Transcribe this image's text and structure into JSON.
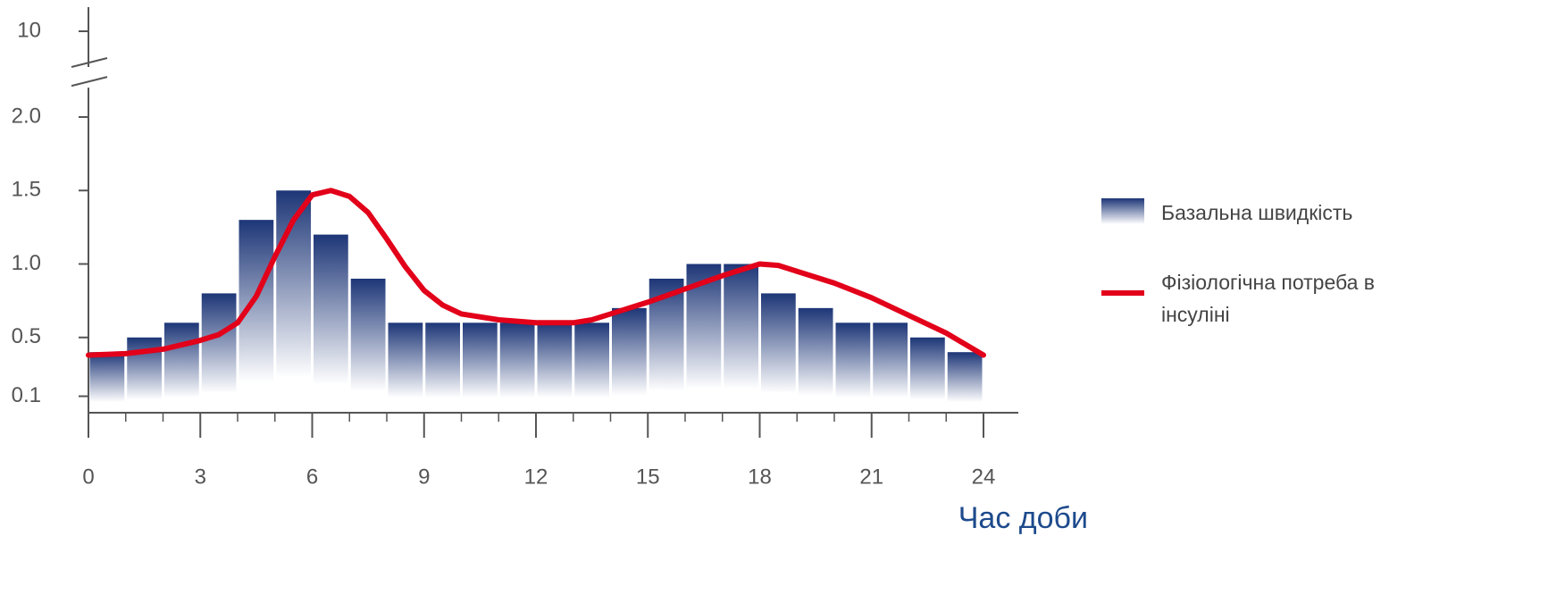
{
  "chart_data": {
    "type": "bar",
    "x_label": "Час доби",
    "xlim": [
      0,
      24
    ],
    "xticks": [
      0,
      3,
      6,
      9,
      12,
      15,
      18,
      21,
      24
    ],
    "xminorticks": [
      0,
      1,
      2,
      3,
      4,
      5,
      6,
      7,
      8,
      9,
      10,
      11,
      12,
      13,
      14,
      15,
      16,
      17,
      18,
      19,
      20,
      21,
      22,
      23,
      24
    ],
    "ylim": [
      0,
      10
    ],
    "y_break": [
      2.2,
      9.8
    ],
    "yticks": [
      {
        "value": 0.1,
        "label": "0.1"
      },
      {
        "value": 0.5,
        "label": "0.5"
      },
      {
        "value": 1.0,
        "label": "1.0"
      },
      {
        "value": 1.5,
        "label": "1.5"
      },
      {
        "value": 2.0,
        "label": "2.0"
      },
      10
    ],
    "series": [
      {
        "name": "Базальна швидкість",
        "type": "histogram",
        "color": "#1d3677",
        "bins": [
          0,
          1,
          2,
          3,
          4,
          5,
          6,
          7,
          8,
          9,
          10,
          11,
          12,
          13,
          14,
          15,
          16,
          17,
          18,
          19,
          20,
          21,
          22,
          23,
          24
        ],
        "values": [
          0.4,
          0.5,
          0.6,
          0.8,
          1.3,
          1.5,
          1.2,
          0.9,
          0.6,
          0.6,
          0.6,
          0.6,
          0.6,
          0.6,
          0.7,
          0.9,
          1.0,
          1.0,
          0.8,
          0.7,
          0.6,
          0.6,
          0.5,
          0.4
        ]
      },
      {
        "name": "Фізіологічна потреба в інсуліні",
        "type": "line",
        "color": "#e2001a",
        "x": [
          0,
          1,
          2,
          3,
          3.5,
          4,
          4.5,
          5,
          5.5,
          6,
          6.5,
          7,
          7.5,
          8,
          8.5,
          9,
          9.5,
          10,
          11,
          12,
          13,
          13.5,
          14,
          15,
          16,
          17,
          18,
          18.5,
          19,
          20,
          21,
          22,
          23,
          24
        ],
        "values": [
          0.38,
          0.39,
          0.42,
          0.48,
          0.52,
          0.6,
          0.78,
          1.05,
          1.3,
          1.47,
          1.5,
          1.46,
          1.35,
          1.17,
          0.98,
          0.82,
          0.72,
          0.66,
          0.62,
          0.6,
          0.6,
          0.62,
          0.66,
          0.74,
          0.83,
          0.92,
          1.0,
          0.99,
          0.95,
          0.87,
          0.77,
          0.65,
          0.53,
          0.38
        ]
      }
    ]
  }
}
